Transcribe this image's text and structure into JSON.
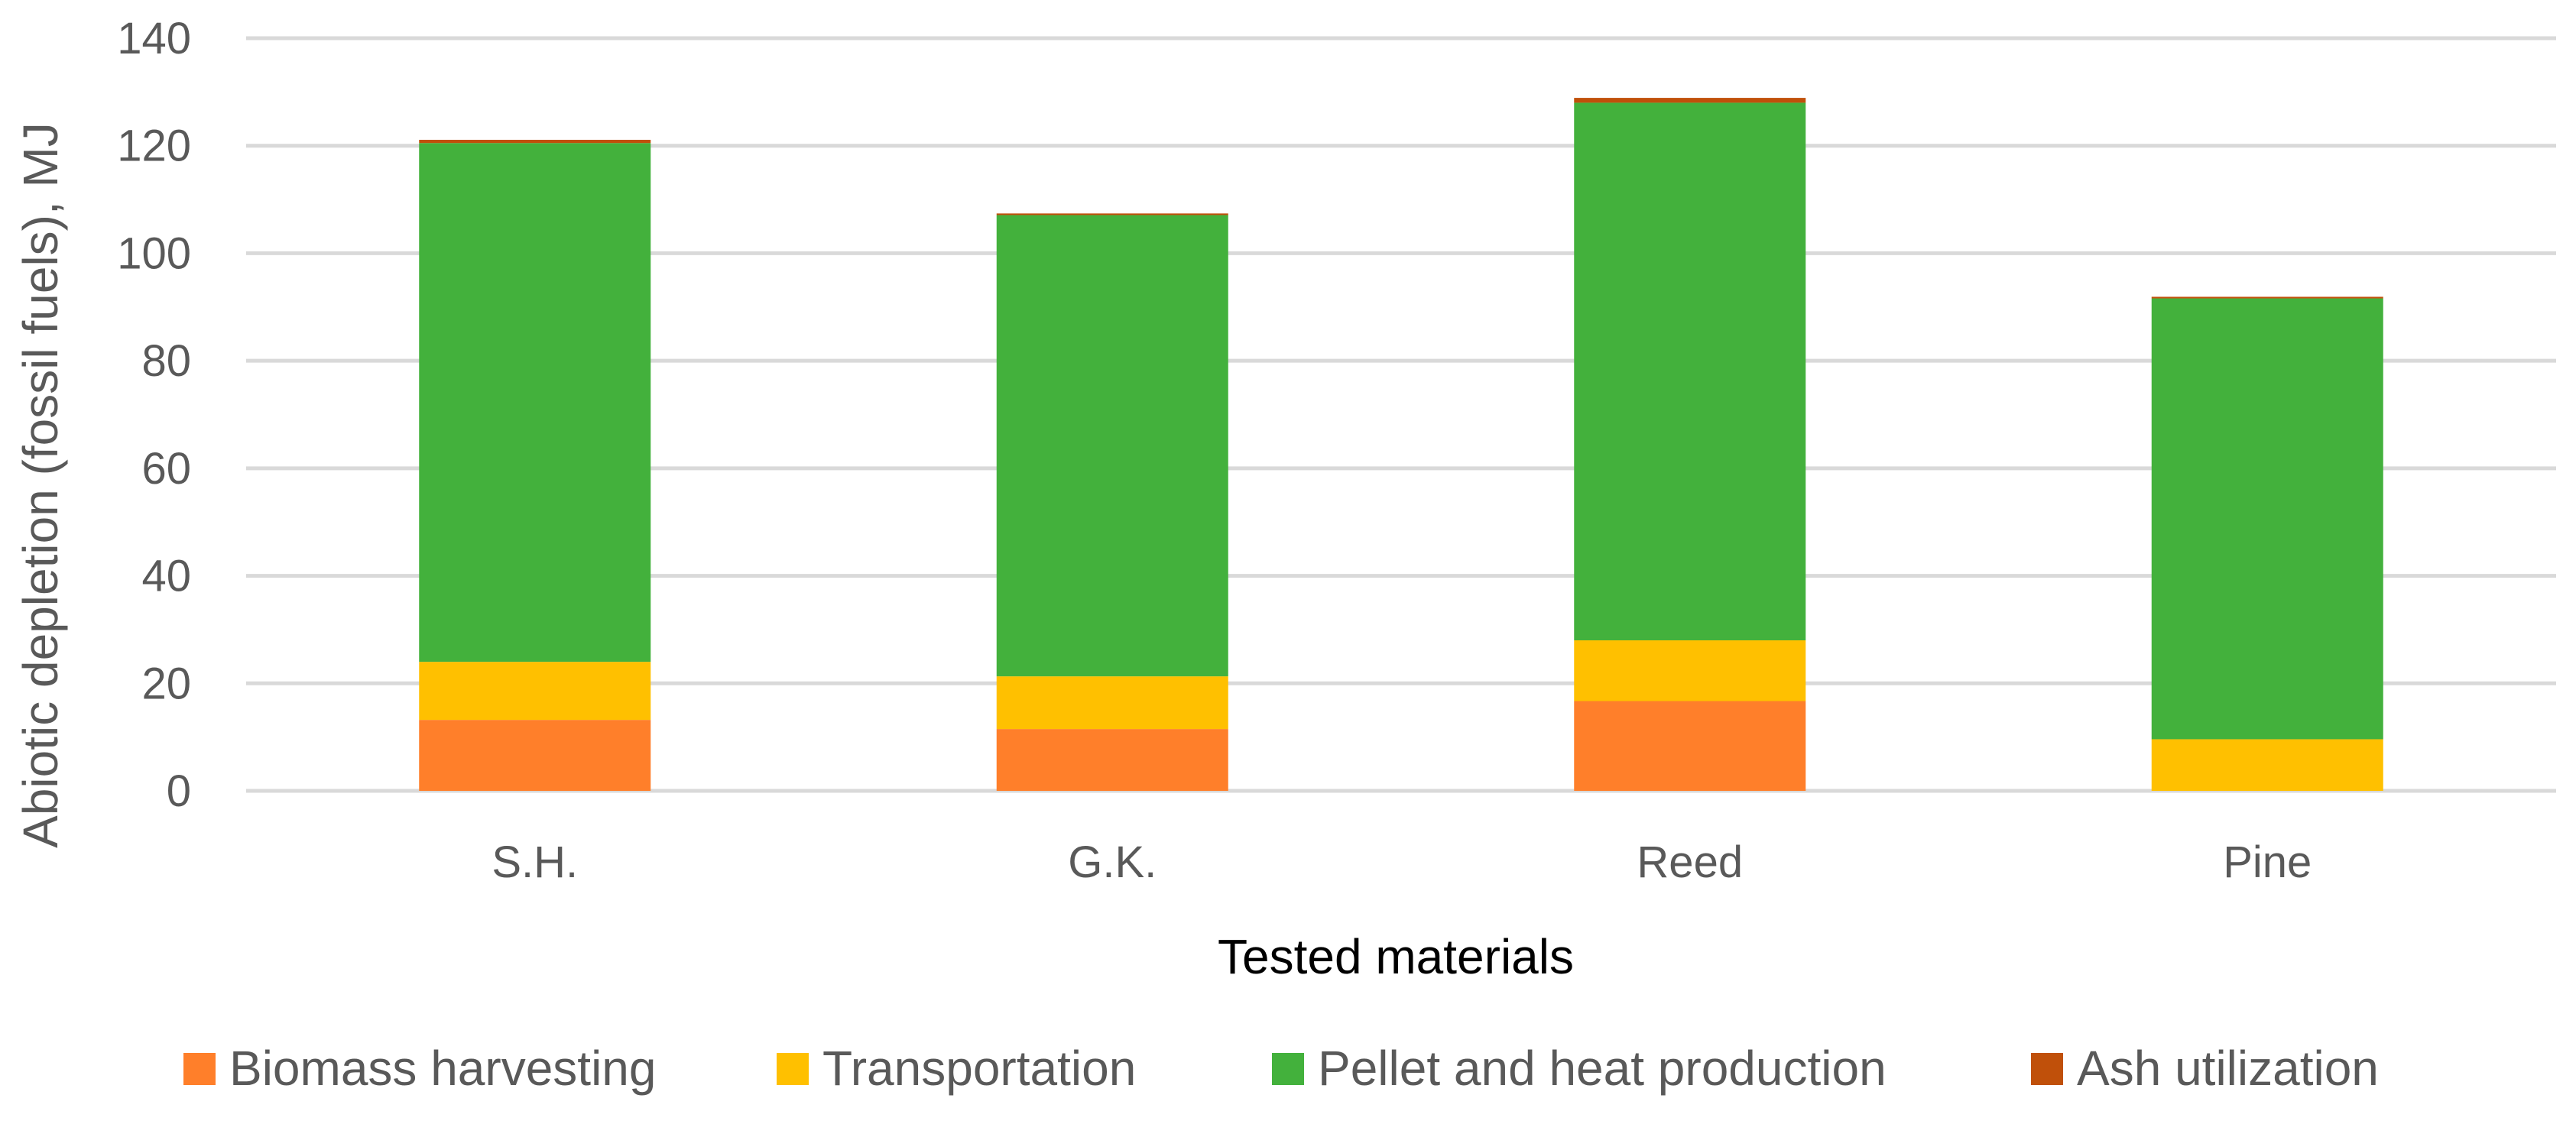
{
  "chart_data": {
    "type": "bar",
    "stacked": true,
    "title": "",
    "xlabel": "Tested materials",
    "ylabel": "Abiotic depletion (fossil fuels), MJ",
    "categories": [
      "S.H.",
      "G.K.",
      "Reed",
      "Pine"
    ],
    "ylim": [
      0,
      140
    ],
    "yticks": [
      0,
      20,
      40,
      60,
      80,
      100,
      120,
      140
    ],
    "grid": true,
    "legend": "bottom",
    "series": [
      {
        "name": "Biomass harvesting",
        "color": "#FF7F2A",
        "values": [
          13.2,
          11.5,
          16.7,
          0
        ]
      },
      {
        "name": "Transportation",
        "color": "#FFC000",
        "values": [
          10.8,
          9.8,
          11.3,
          9.6
        ]
      },
      {
        "name": "Pellet and heat production",
        "color": "#43B13C",
        "values": [
          96.5,
          85.8,
          100.0,
          82.0
        ]
      },
      {
        "name": "Ash utilization",
        "color": "#C0500A",
        "values": [
          0.6,
          0.3,
          0.9,
          0.3
        ]
      }
    ]
  }
}
